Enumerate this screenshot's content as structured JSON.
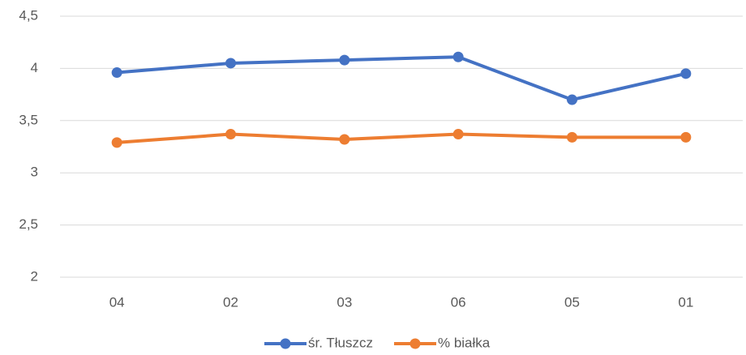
{
  "chart_data": {
    "type": "line",
    "categories": [
      "04",
      "02",
      "03",
      "06",
      "05",
      "01"
    ],
    "series": [
      {
        "name": "śr. Tłuszcz",
        "color": "#4472c4",
        "values": [
          3.96,
          4.05,
          4.08,
          4.11,
          3.7,
          3.95
        ]
      },
      {
        "name": "% białka",
        "color": "#ed7d31",
        "values": [
          3.29,
          3.37,
          3.32,
          3.37,
          3.34,
          3.34
        ]
      }
    ],
    "ylim": [
      2,
      4.5
    ],
    "yticks": [
      2,
      {
        "value": 2.5,
        "label": "2,5"
      },
      3,
      {
        "value": 3.5,
        "label": "3,5"
      },
      4,
      {
        "value": 4.5,
        "label": "4,5"
      }
    ],
    "grid": true,
    "legend": "bottom"
  }
}
